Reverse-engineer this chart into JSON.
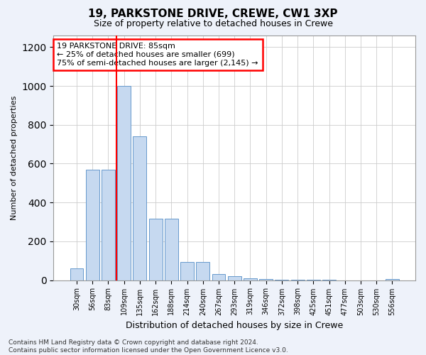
{
  "title1": "19, PARKSTONE DRIVE, CREWE, CW1 3XP",
  "title2": "Size of property relative to detached houses in Crewe",
  "xlabel": "Distribution of detached houses by size in Crewe",
  "ylabel": "Number of detached properties",
  "categories": [
    "30sqm",
    "56sqm",
    "83sqm",
    "109sqm",
    "135sqm",
    "162sqm",
    "188sqm",
    "214sqm",
    "240sqm",
    "267sqm",
    "293sqm",
    "319sqm",
    "346sqm",
    "372sqm",
    "398sqm",
    "425sqm",
    "451sqm",
    "477sqm",
    "503sqm",
    "530sqm",
    "556sqm"
  ],
  "values": [
    60,
    570,
    570,
    1000,
    740,
    315,
    315,
    95,
    95,
    30,
    20,
    8,
    5,
    3,
    2,
    1,
    1,
    0,
    0,
    0,
    5
  ],
  "bar_color": "#c6d9f0",
  "bar_edge_color": "#6699cc",
  "vline_x": 2.5,
  "vline_color": "red",
  "ylim": [
    0,
    1260
  ],
  "annotation_text": "19 PARKSTONE DRIVE: 85sqm\n← 25% of detached houses are smaller (699)\n75% of semi-detached houses are larger (2,145) →",
  "annotation_box_color": "red",
  "annotation_text_color": "black",
  "annotation_box_facecolor": "white",
  "footer1": "Contains HM Land Registry data © Crown copyright and database right 2024.",
  "footer2": "Contains public sector information licensed under the Open Government Licence v3.0.",
  "background_color": "#eef2fa",
  "plot_bg_color": "#ffffff",
  "title1_fontsize": 11,
  "title2_fontsize": 9,
  "xlabel_fontsize": 9,
  "ylabel_fontsize": 8,
  "tick_fontsize": 7,
  "annot_fontsize": 8,
  "footer_fontsize": 6.5
}
